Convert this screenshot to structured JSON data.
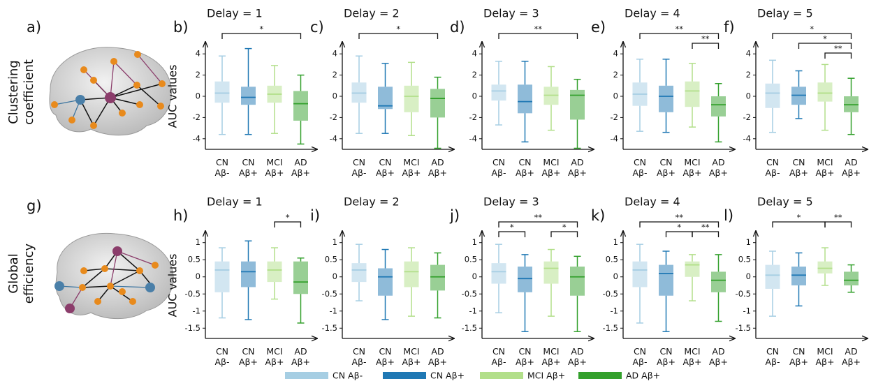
{
  "panel_a": "a)",
  "panel_g": "g)",
  "row_labels": [
    [
      "Clustering",
      "coefficient"
    ],
    [
      "Global",
      "efficiency"
    ]
  ],
  "legend": [
    {
      "name": "CN Aβ-",
      "color": "#a6cee3"
    },
    {
      "name": "CN Aβ+",
      "color": "#1f78b4"
    },
    {
      "name": "MCI Aβ+",
      "color": "#b2df8a"
    },
    {
      "name": "AD Aβ+",
      "color": "#33a02c"
    }
  ],
  "chart_data": [
    {
      "type": "box",
      "label": "b)",
      "title": "Delay = 1",
      "ylabel": "AUC values",
      "categories": [
        [
          "CN",
          "Aβ-"
        ],
        [
          "CN",
          "Aβ+"
        ],
        [
          "MCI",
          "Aβ+"
        ],
        [
          "AD",
          "Aβ+"
        ]
      ],
      "ylim": [
        -5,
        5
      ],
      "yticks": [
        -4,
        -2,
        0,
        2,
        4
      ],
      "boxes": [
        {
          "whislo": -3.6,
          "q1": -0.6,
          "med": 0.3,
          "q3": 1.4,
          "whishi": 3.8
        },
        {
          "whislo": -3.6,
          "q1": -0.8,
          "med": -0.1,
          "q3": 0.9,
          "whishi": 4.5
        },
        {
          "whislo": -3.5,
          "q1": -0.6,
          "med": 0.2,
          "q3": 1.0,
          "whishi": 2.9
        },
        {
          "whislo": -4.5,
          "q1": -2.3,
          "med": -0.7,
          "q3": 0.5,
          "whishi": 2.0
        }
      ],
      "brackets": [
        {
          "between": [
            0,
            3
          ],
          "label": "*"
        }
      ]
    },
    {
      "type": "box",
      "label": "c)",
      "title": "Delay = 2",
      "categories": [
        [
          "CN",
          "Aβ-"
        ],
        [
          "CN",
          "Aβ+"
        ],
        [
          "MCI",
          "Aβ+"
        ],
        [
          "AD",
          "Aβ+"
        ]
      ],
      "ylim": [
        -5,
        5
      ],
      "yticks": [
        -4,
        -2,
        0,
        2,
        4
      ],
      "boxes": [
        {
          "whislo": -3.5,
          "q1": -0.6,
          "med": 0.3,
          "q3": 1.3,
          "whishi": 3.8
        },
        {
          "whislo": -3.5,
          "q1": -1.2,
          "med": -0.9,
          "q3": 0.9,
          "whishi": 3.1
        },
        {
          "whislo": -3.7,
          "q1": -1.5,
          "med": 0.0,
          "q3": 1.0,
          "whishi": 3.2
        },
        {
          "whislo": -4.9,
          "q1": -2.0,
          "med": -0.2,
          "q3": 0.7,
          "whishi": 1.8
        }
      ],
      "brackets": [
        {
          "between": [
            0,
            3
          ],
          "label": "*"
        }
      ]
    },
    {
      "type": "box",
      "label": "d)",
      "title": "Delay = 3",
      "categories": [
        [
          "CN",
          "Aβ-"
        ],
        [
          "CN",
          "Aβ+"
        ],
        [
          "MCI",
          "Aβ+"
        ],
        [
          "AD",
          "Aβ+"
        ]
      ],
      "ylim": [
        -5,
        5
      ],
      "yticks": [
        -4,
        -2,
        0,
        2,
        4
      ],
      "boxes": [
        {
          "whislo": -2.7,
          "q1": -0.4,
          "med": 0.5,
          "q3": 1.1,
          "whishi": 3.3
        },
        {
          "whislo": -4.3,
          "q1": -1.6,
          "med": -0.5,
          "q3": 1.1,
          "whishi": 3.3
        },
        {
          "whislo": -3.2,
          "q1": -0.8,
          "med": 0.1,
          "q3": 0.9,
          "whishi": 2.8
        },
        {
          "whislo": -4.9,
          "q1": -2.2,
          "med": 0.1,
          "q3": 0.6,
          "whishi": 1.6
        }
      ],
      "brackets": [
        {
          "between": [
            0,
            3
          ],
          "label": "**"
        }
      ]
    },
    {
      "type": "box",
      "label": "e)",
      "title": "Delay = 4",
      "categories": [
        [
          "CN",
          "Aβ-"
        ],
        [
          "CN",
          "Aβ+"
        ],
        [
          "MCI",
          "Aβ+"
        ],
        [
          "AD",
          "Aβ+"
        ]
      ],
      "ylim": [
        -5,
        5
      ],
      "yticks": [
        -4,
        -2,
        0,
        2,
        4
      ],
      "boxes": [
        {
          "whislo": -3.3,
          "q1": -0.9,
          "med": 0.2,
          "q3": 1.3,
          "whishi": 3.5
        },
        {
          "whislo": -3.4,
          "q1": -1.5,
          "med": 0.0,
          "q3": 1.0,
          "whishi": 3.5
        },
        {
          "whislo": -2.9,
          "q1": -1.0,
          "med": 0.5,
          "q3": 1.4,
          "whishi": 3.1
        },
        {
          "whislo": -4.3,
          "q1": -1.9,
          "med": -0.8,
          "q3": 0.0,
          "whishi": 1.2
        }
      ],
      "brackets": [
        {
          "between": [
            0,
            3
          ],
          "label": "**"
        },
        {
          "between": [
            2,
            3
          ],
          "label": "**"
        }
      ]
    },
    {
      "type": "box",
      "label": "f)",
      "title": "Delay = 5",
      "categories": [
        [
          "CN",
          "Aβ-"
        ],
        [
          "CN",
          "Aβ+"
        ],
        [
          "MCI",
          "Aβ+"
        ],
        [
          "AD",
          "Aβ+"
        ]
      ],
      "ylim": [
        -5,
        5
      ],
      "yticks": [
        -4,
        -2,
        0,
        2,
        4
      ],
      "boxes": [
        {
          "whislo": -3.4,
          "q1": -1.1,
          "med": 0.3,
          "q3": 1.2,
          "whishi": 3.4
        },
        {
          "whislo": -2.1,
          "q1": -0.8,
          "med": 0.1,
          "q3": 0.9,
          "whishi": 2.4
        },
        {
          "whislo": -3.2,
          "q1": -0.5,
          "med": 0.3,
          "q3": 1.3,
          "whishi": 3.0
        },
        {
          "whislo": -3.6,
          "q1": -1.5,
          "med": -0.8,
          "q3": 0.0,
          "whishi": 1.7
        }
      ],
      "brackets": [
        {
          "between": [
            0,
            3
          ],
          "label": "*"
        },
        {
          "between": [
            1,
            3
          ],
          "label": "*"
        },
        {
          "between": [
            2,
            3
          ],
          "label": "**"
        }
      ]
    },
    {
      "type": "box",
      "label": "h)",
      "title": "Delay = 1",
      "ylabel": "AUC values",
      "categories": [
        [
          "CN",
          "Aβ-"
        ],
        [
          "CN",
          "Aβ+"
        ],
        [
          "MCI",
          "Aβ+"
        ],
        [
          "AD",
          "Aβ+"
        ]
      ],
      "ylim": [
        -1.8,
        1.3
      ],
      "yticks": [
        -1.5,
        -1,
        -0.5,
        0,
        0.5,
        1
      ],
      "boxes": [
        {
          "whislo": -1.2,
          "q1": -0.45,
          "med": 0.2,
          "q3": 0.45,
          "whishi": 0.85
        },
        {
          "whislo": -1.25,
          "q1": -0.3,
          "med": 0.15,
          "q3": 0.45,
          "whishi": 1.05
        },
        {
          "whislo": -0.65,
          "q1": -0.15,
          "med": 0.2,
          "q3": 0.45,
          "whishi": 0.85
        },
        {
          "whislo": -1.35,
          "q1": -0.5,
          "med": -0.15,
          "q3": 0.45,
          "whishi": 0.55
        }
      ],
      "brackets": [
        {
          "between": [
            2,
            3
          ],
          "label": "*"
        }
      ]
    },
    {
      "type": "box",
      "label": "i)",
      "title": "Delay = 2",
      "categories": [
        [
          "CN",
          "Aβ-"
        ],
        [
          "CN",
          "Aβ+"
        ],
        [
          "MCI",
          "Aβ+"
        ],
        [
          "AD",
          "Aβ+"
        ]
      ],
      "ylim": [
        -1.8,
        1.3
      ],
      "yticks": [
        -1.5,
        -1,
        -0.5,
        0,
        0.5,
        1
      ],
      "boxes": [
        {
          "whislo": -0.7,
          "q1": -0.15,
          "med": 0.2,
          "q3": 0.4,
          "whishi": 0.95
        },
        {
          "whislo": -1.25,
          "q1": -0.55,
          "med": 0.0,
          "q3": 0.25,
          "whishi": 0.8
        },
        {
          "whislo": -1.15,
          "q1": -0.3,
          "med": 0.15,
          "q3": 0.45,
          "whishi": 0.85
        },
        {
          "whislo": -1.2,
          "q1": -0.4,
          "med": 0.0,
          "q3": 0.35,
          "whishi": 0.7
        }
      ],
      "brackets": []
    },
    {
      "type": "box",
      "label": "j)",
      "title": "Delay = 3",
      "categories": [
        [
          "CN",
          "Aβ-"
        ],
        [
          "CN",
          "Aβ+"
        ],
        [
          "MCI",
          "Aβ+"
        ],
        [
          "AD",
          "Aβ+"
        ]
      ],
      "ylim": [
        -1.8,
        1.3
      ],
      "yticks": [
        -1.5,
        -1,
        -0.5,
        0,
        0.5,
        1
      ],
      "boxes": [
        {
          "whislo": -1.05,
          "q1": -0.2,
          "med": 0.15,
          "q3": 0.4,
          "whishi": 0.95
        },
        {
          "whislo": -1.6,
          "q1": -0.45,
          "med": -0.05,
          "q3": 0.3,
          "whishi": 0.65
        },
        {
          "whislo": -1.15,
          "q1": -0.2,
          "med": 0.25,
          "q3": 0.45,
          "whishi": 0.8
        },
        {
          "whislo": -1.6,
          "q1": -0.55,
          "med": 0.0,
          "q3": 0.3,
          "whishi": 0.6
        }
      ],
      "brackets": [
        {
          "between": [
            0,
            3
          ],
          "label": "**"
        },
        {
          "between": [
            0,
            1
          ],
          "label": "*"
        },
        {
          "between": [
            2,
            3
          ],
          "label": "*"
        }
      ]
    },
    {
      "type": "box",
      "label": "k)",
      "title": "Delay = 4",
      "categories": [
        [
          "CN",
          "Aβ-"
        ],
        [
          "CN",
          "Aβ+"
        ],
        [
          "MCI",
          "Aβ+"
        ],
        [
          "AD",
          "Aβ+"
        ]
      ],
      "ylim": [
        -1.8,
        1.3
      ],
      "yticks": [
        -1.5,
        -1,
        -0.5,
        0,
        0.5,
        1
      ],
      "boxes": [
        {
          "whislo": -1.35,
          "q1": -0.3,
          "med": 0.2,
          "q3": 0.45,
          "whishi": 0.95
        },
        {
          "whislo": -1.6,
          "q1": -0.55,
          "med": 0.1,
          "q3": 0.35,
          "whishi": 0.75
        },
        {
          "whislo": -0.7,
          "q1": 0.0,
          "med": 0.35,
          "q3": 0.45,
          "whishi": 0.65
        },
        {
          "whislo": -1.3,
          "q1": -0.45,
          "med": -0.1,
          "q3": 0.15,
          "whishi": 0.65
        }
      ],
      "brackets": [
        {
          "between": [
            0,
            3
          ],
          "label": "**"
        },
        {
          "between": [
            1,
            2
          ],
          "label": "*"
        },
        {
          "between": [
            2,
            3
          ],
          "label": "**"
        }
      ]
    },
    {
      "type": "box",
      "label": "l)",
      "title": "Delay = 5",
      "categories": [
        [
          "CN",
          "Aβ-"
        ],
        [
          "CN",
          "Aβ+"
        ],
        [
          "MCI",
          "Aβ+"
        ],
        [
          "AD",
          "Aβ+"
        ]
      ],
      "ylim": [
        -1.8,
        1.3
      ],
      "yticks": [
        -1.5,
        -1,
        -0.5,
        0,
        0.5,
        1
      ],
      "boxes": [
        {
          "whislo": -1.15,
          "q1": -0.35,
          "med": 0.05,
          "q3": 0.35,
          "whishi": 0.75
        },
        {
          "whislo": -0.85,
          "q1": -0.25,
          "med": 0.05,
          "q3": 0.3,
          "whishi": 0.7
        },
        {
          "whislo": -0.25,
          "q1": 0.1,
          "med": 0.25,
          "q3": 0.45,
          "whishi": 0.85
        },
        {
          "whislo": -0.45,
          "q1": -0.25,
          "med": -0.1,
          "q3": 0.15,
          "whishi": 0.35
        }
      ],
      "brackets": [
        {
          "between": [
            0,
            2
          ],
          "label": "*"
        },
        {
          "between": [
            2,
            3
          ],
          "label": "**"
        }
      ]
    }
  ]
}
